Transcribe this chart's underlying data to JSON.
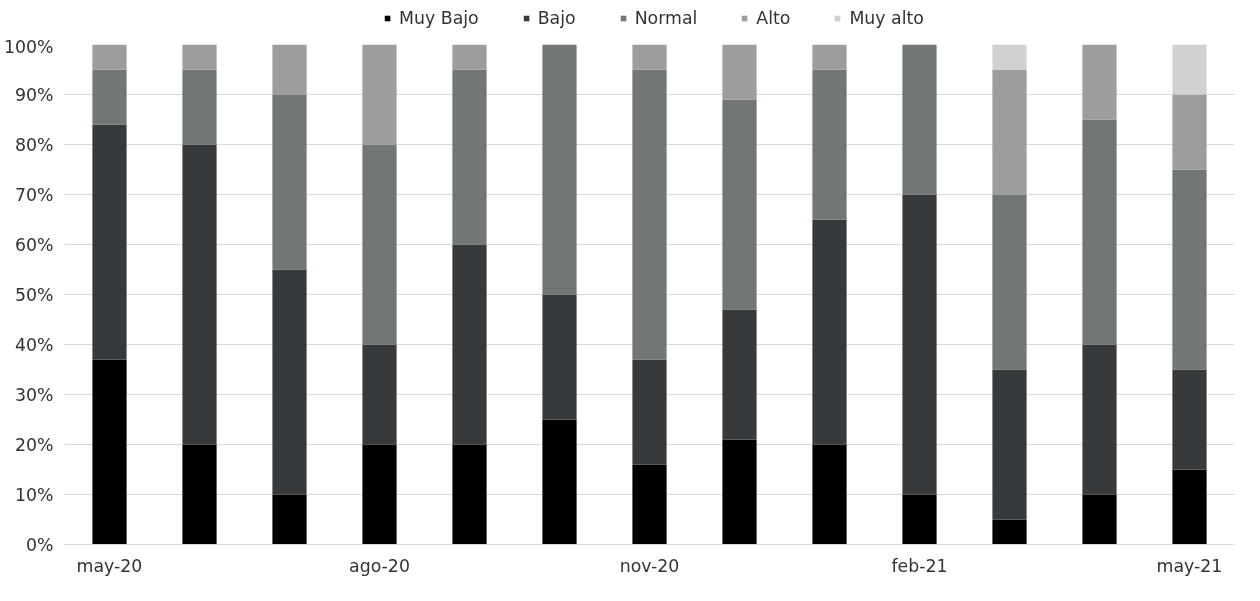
{
  "chart_data": {
    "type": "bar",
    "stacked": true,
    "categories": [
      "may-20",
      null,
      null,
      "ago-20",
      null,
      null,
      "nov-20",
      null,
      null,
      "feb-21",
      null,
      null,
      "may-21"
    ],
    "series": [
      {
        "name": "Muy Bajo",
        "color": "#000000",
        "values": [
          37,
          20,
          10,
          20,
          20,
          25,
          16,
          21,
          20,
          10,
          5,
          10,
          15
        ]
      },
      {
        "name": "Bajo",
        "color": "#373a3c",
        "values": [
          47,
          60,
          45,
          20,
          40,
          25,
          21,
          26,
          45,
          60,
          30,
          30,
          20
        ]
      },
      {
        "name": "Normal",
        "color": "#717775",
        "values": [
          11,
          15,
          35,
          40,
          35,
          50,
          58,
          42,
          30,
          30,
          35,
          45,
          40
        ]
      },
      {
        "name": "Alto",
        "color": "#9d9d9e",
        "values": [
          5,
          5,
          10,
          20,
          5,
          0,
          5,
          11,
          5,
          0,
          25,
          15,
          15
        ]
      },
      {
        "name": "Muy alto",
        "color": "#d0d1d1",
        "values": [
          0,
          0,
          0,
          0,
          0,
          0,
          0,
          0,
          0,
          0,
          5,
          0,
          10
        ]
      }
    ],
    "ylim": [
      0,
      100
    ],
    "yticks": [
      {
        "value": 0,
        "label": "0%"
      },
      {
        "value": 10,
        "label": "10%"
      },
      {
        "value": 20,
        "label": "20%"
      },
      {
        "value": 30,
        "label": "30%"
      },
      {
        "value": 40,
        "label": "40%"
      },
      {
        "value": 50,
        "label": "50%"
      },
      {
        "value": 60,
        "label": "60%"
      },
      {
        "value": 70,
        "label": "70%"
      },
      {
        "value": 80,
        "label": "80%"
      },
      {
        "value": 90,
        "label": "90%"
      },
      {
        "value": 100,
        "label": "100%"
      }
    ],
    "grid": "y",
    "legend": "top"
  }
}
